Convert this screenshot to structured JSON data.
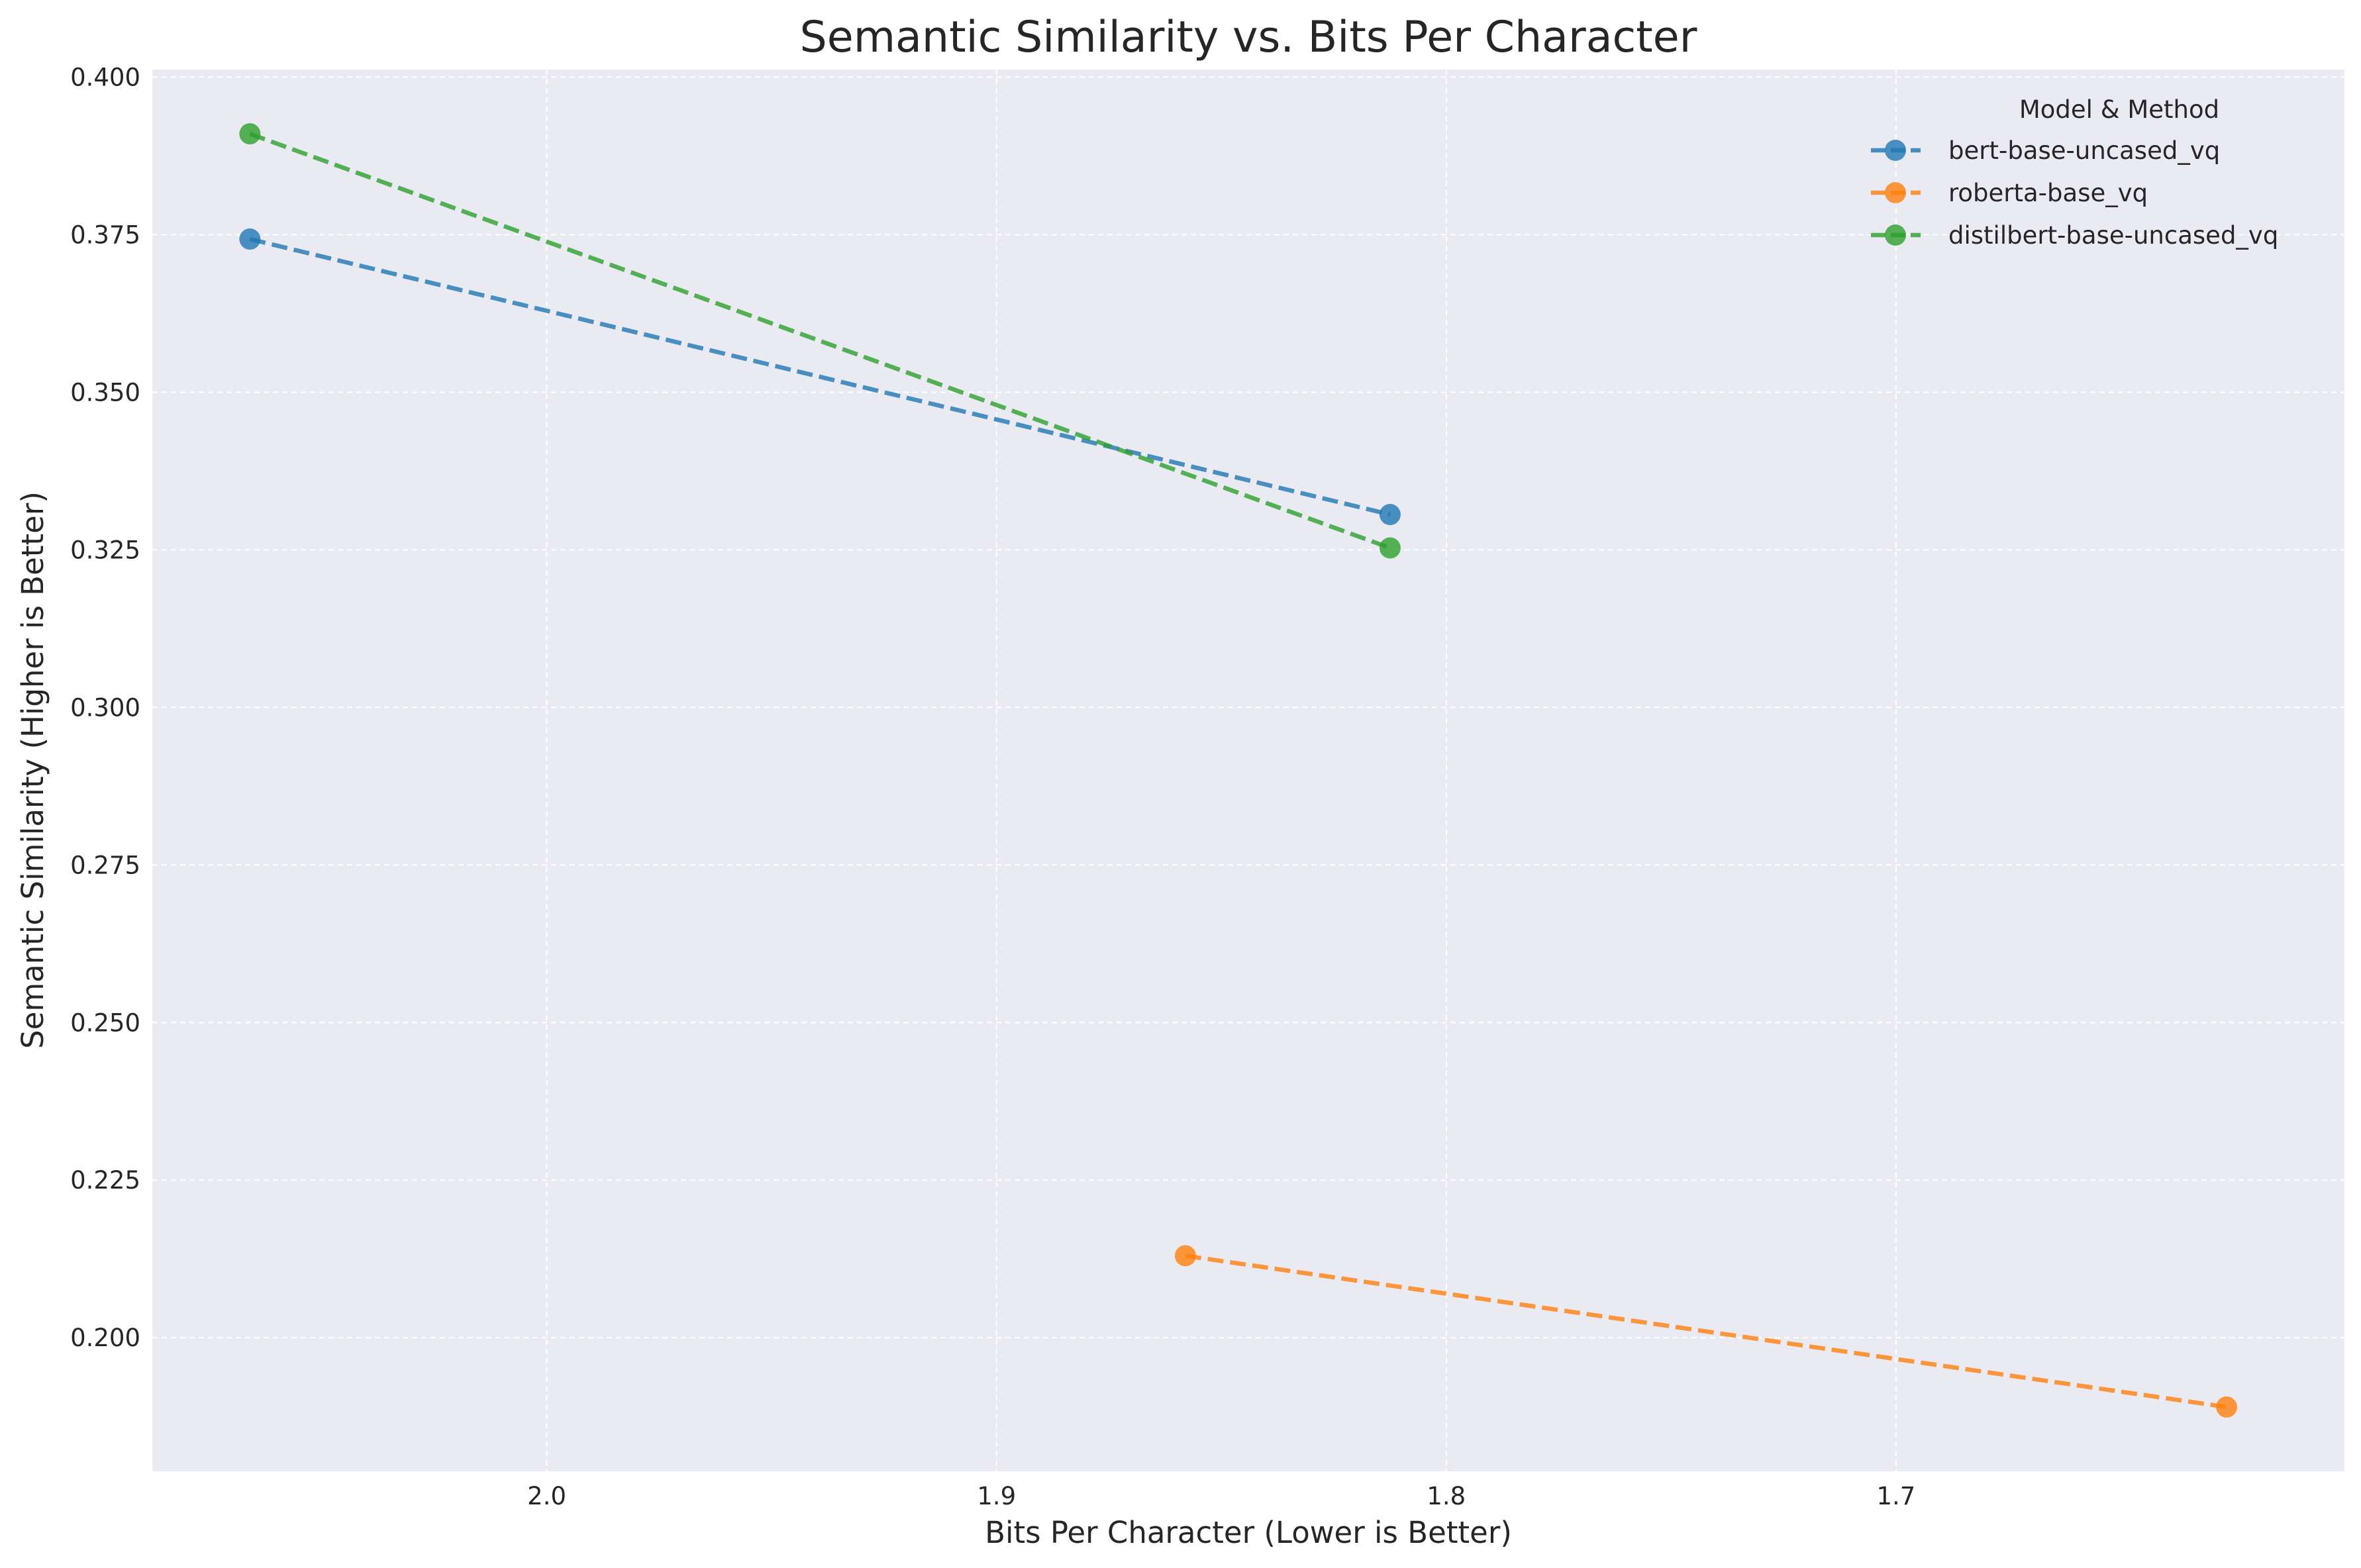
{
  "chart_data": {
    "type": "line",
    "title": "Semantic Similarity vs. Bits Per Character",
    "xlabel": "Bits Per Character (Lower is Better)",
    "ylabel": "Semantic Similarity (Higher is Better)",
    "x_axis_inverted": true,
    "xlim": [
      2.0877,
      1.6003
    ],
    "ylim": [
      0.1788,
      0.4012
    ],
    "xticks": [
      2.0,
      1.9,
      1.8,
      1.7
    ],
    "xtick_labels": [
      "2.0",
      "1.9",
      "1.8",
      "1.7"
    ],
    "yticks": [
      0.2,
      0.225,
      0.25,
      0.275,
      0.3,
      0.325,
      0.35,
      0.375,
      0.4
    ],
    "ytick_labels": [
      "0.200",
      "0.225",
      "0.250",
      "0.275",
      "0.300",
      "0.325",
      "0.350",
      "0.375",
      "0.400"
    ],
    "grid": true,
    "line_style": "dashed",
    "marker": "circle",
    "legend_title": "Model & Method",
    "legend_position": "top-right",
    "series": [
      {
        "name": "bert-base-uncased_vq",
        "color": "#1f77b4",
        "x": [
          2.066,
          1.8125
        ],
        "y": [
          0.3743,
          0.3306
        ]
      },
      {
        "name": "roberta-base_vq",
        "color": "#ff7f0e",
        "x": [
          1.858,
          1.6265
        ],
        "y": [
          0.213,
          0.189
        ]
      },
      {
        "name": "distilbert-base-uncased_vq",
        "color": "#2ca02c",
        "x": [
          2.066,
          1.8125
        ],
        "y": [
          0.391,
          0.3253
        ]
      }
    ]
  }
}
